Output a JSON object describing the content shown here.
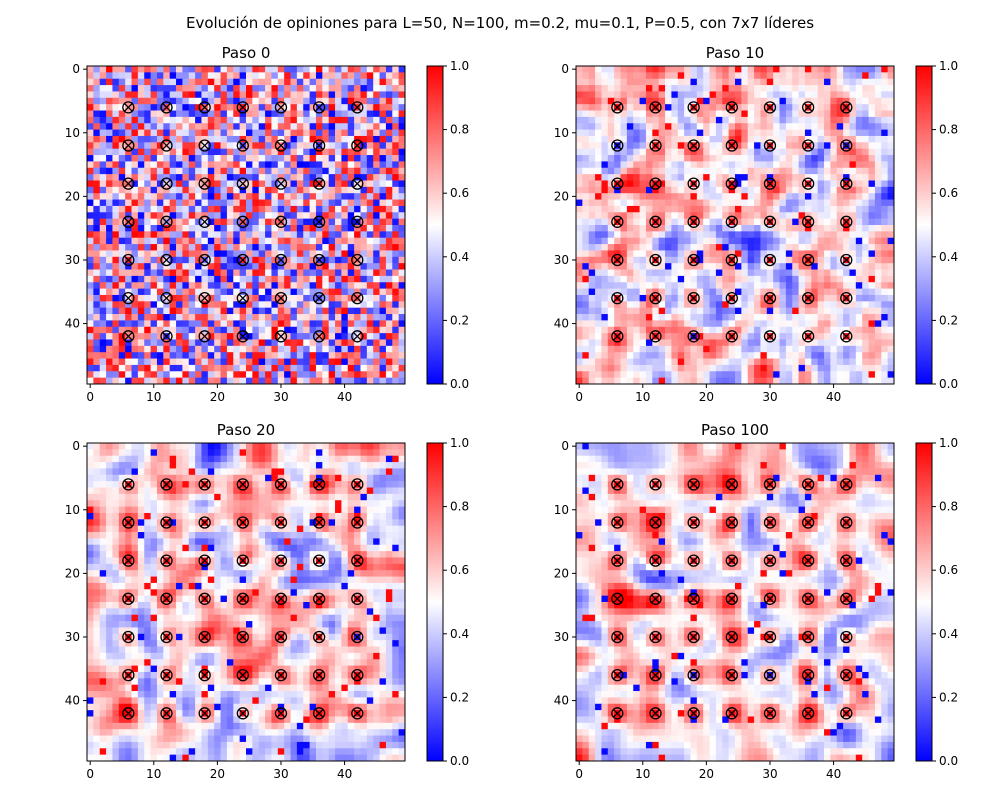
{
  "figure": {
    "title": "Evolución de opiniones para L=50, N=100, m=0.2, mu=0.1, P=0.5, con 7x7 líderes"
  },
  "chart_data": [
    {
      "type": "heatmap",
      "title": "Paso 0",
      "grid_size": 50,
      "x_ticks": [
        0,
        10,
        20,
        30,
        40
      ],
      "y_ticks": [
        0,
        10,
        20,
        30,
        40
      ],
      "colorbar": {
        "ticks": [
          "0.0",
          "0.2",
          "0.4",
          "0.6",
          "0.8",
          "1.0"
        ],
        "range": [
          0,
          1
        ],
        "colormap": "bwr"
      },
      "leaders": {
        "positions": [
          6,
          12,
          18,
          24,
          30,
          36,
          42
        ],
        "marker": "circle-x"
      },
      "description_level": "random"
    },
    {
      "type": "heatmap",
      "title": "Paso 10",
      "grid_size": 50,
      "x_ticks": [
        0,
        10,
        20,
        30,
        40
      ],
      "y_ticks": [
        0,
        10,
        20,
        30,
        40
      ],
      "colorbar": {
        "ticks": [
          "0.0",
          "0.2",
          "0.4",
          "0.6",
          "0.8",
          "1.0"
        ],
        "range": [
          0,
          1
        ],
        "colormap": "bwr"
      },
      "leaders": {
        "positions": [
          6,
          12,
          18,
          24,
          30,
          36,
          42
        ],
        "marker": "circle-x"
      },
      "description_level": "smoothing"
    },
    {
      "type": "heatmap",
      "title": "Paso 20",
      "grid_size": 50,
      "x_ticks": [
        0,
        10,
        20,
        30,
        40
      ],
      "y_ticks": [
        0,
        10,
        20,
        30,
        40
      ],
      "colorbar": {
        "ticks": [
          "0.0",
          "0.2",
          "0.4",
          "0.6",
          "0.8",
          "1.0"
        ],
        "range": [
          0,
          1
        ],
        "colormap": "bwr"
      },
      "leaders": {
        "positions": [
          6,
          12,
          18,
          24,
          30,
          36,
          42
        ],
        "marker": "circle-x"
      },
      "description_level": "smooth"
    },
    {
      "type": "heatmap",
      "title": "Paso 100",
      "grid_size": 50,
      "x_ticks": [
        0,
        10,
        20,
        30,
        40
      ],
      "y_ticks": [
        0,
        10,
        20,
        30,
        40
      ],
      "colorbar": {
        "ticks": [
          "0.0",
          "0.2",
          "0.4",
          "0.6",
          "0.8",
          "1.0"
        ],
        "range": [
          0,
          1
        ],
        "colormap": "bwr"
      },
      "leaders": {
        "positions": [
          6,
          12,
          18,
          24,
          30,
          36,
          42
        ],
        "marker": "circle-x"
      },
      "description_level": "smoother"
    }
  ]
}
